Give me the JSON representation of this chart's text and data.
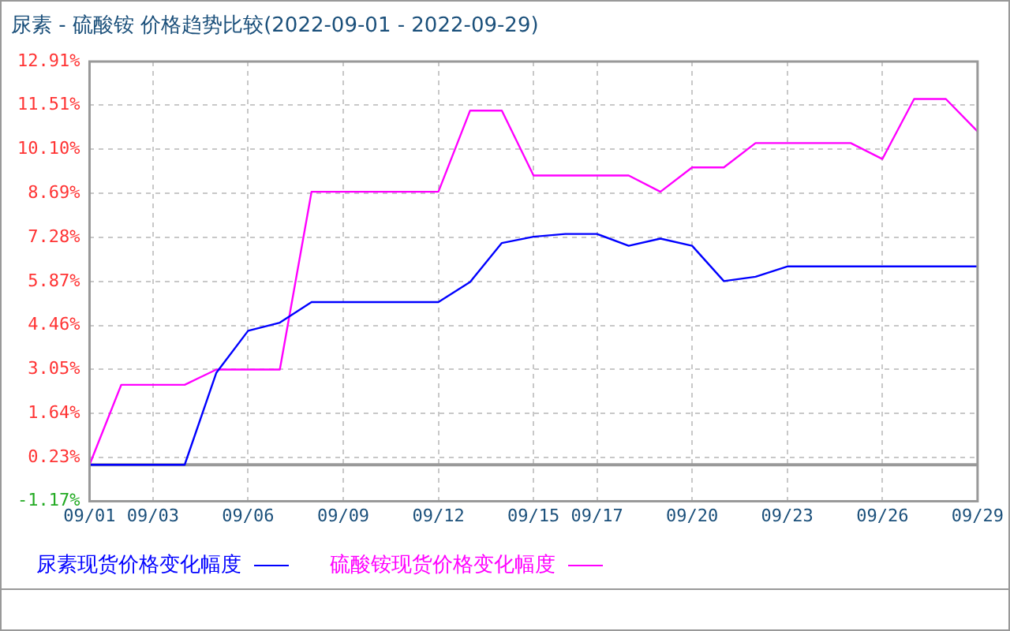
{
  "chart_data": {
    "type": "line",
    "title": "尿素 - 硫酸铵 价格趋势比较(2022-09-01 - 2022-09-29)",
    "categories": [
      "09/01",
      null,
      "09/03",
      null,
      null,
      "09/06",
      null,
      null,
      "09/09",
      null,
      null,
      "09/12",
      null,
      null,
      "09/15",
      null,
      "09/17",
      null,
      null,
      "09/20",
      null,
      null,
      "09/23",
      null,
      null,
      "09/26",
      null,
      null,
      "09/29"
    ],
    "series": [
      {
        "name": "尿素现货价格变化幅度",
        "color": "#0000ff",
        "values": [
          0,
          0,
          0,
          0,
          2.95,
          4.29,
          4.55,
          5.21,
          5.21,
          5.21,
          5.21,
          5.21,
          5.85,
          7.1,
          7.3,
          7.39,
          7.39,
          7.01,
          7.24,
          7.01,
          5.88,
          6.02,
          6.35,
          6.35,
          6.35,
          6.35,
          6.35,
          6.35,
          6.35
        ]
      },
      {
        "name": "硫酸铵现货价格变化幅度",
        "color": "#ff00ff",
        "values": [
          0,
          2.56,
          2.56,
          2.56,
          3.05,
          3.05,
          3.05,
          8.74,
          8.74,
          8.74,
          8.74,
          8.74,
          11.34,
          11.34,
          9.26,
          9.26,
          9.26,
          9.26,
          8.74,
          9.52,
          9.52,
          10.3,
          10.3,
          10.3,
          10.3,
          9.79,
          11.71,
          11.71,
          10.67
        ]
      }
    ],
    "ylim": [
      -1.17,
      12.91
    ],
    "yticks": [
      {
        "value": -1.17,
        "label": "-1.17%"
      },
      {
        "value": 0.23,
        "label": "0.23%"
      },
      {
        "value": 1.64,
        "label": "1.64%"
      },
      {
        "value": 3.05,
        "label": "3.05%"
      },
      {
        "value": 4.46,
        "label": "4.46%"
      },
      {
        "value": 5.87,
        "label": "5.87%"
      },
      {
        "value": 7.28,
        "label": "7.28%"
      },
      {
        "value": 8.69,
        "label": "8.69%"
      },
      {
        "value": 10.1,
        "label": "10.10%"
      },
      {
        "value": 11.51,
        "label": "11.51%"
      },
      {
        "value": 12.91,
        "label": "12.91%"
      }
    ],
    "ref_lines": [
      {
        "axis": "y",
        "value": 0,
        "color": "#999999"
      }
    ],
    "grid": true,
    "legend": "bottom",
    "marker": "none",
    "line_style": "solid"
  }
}
